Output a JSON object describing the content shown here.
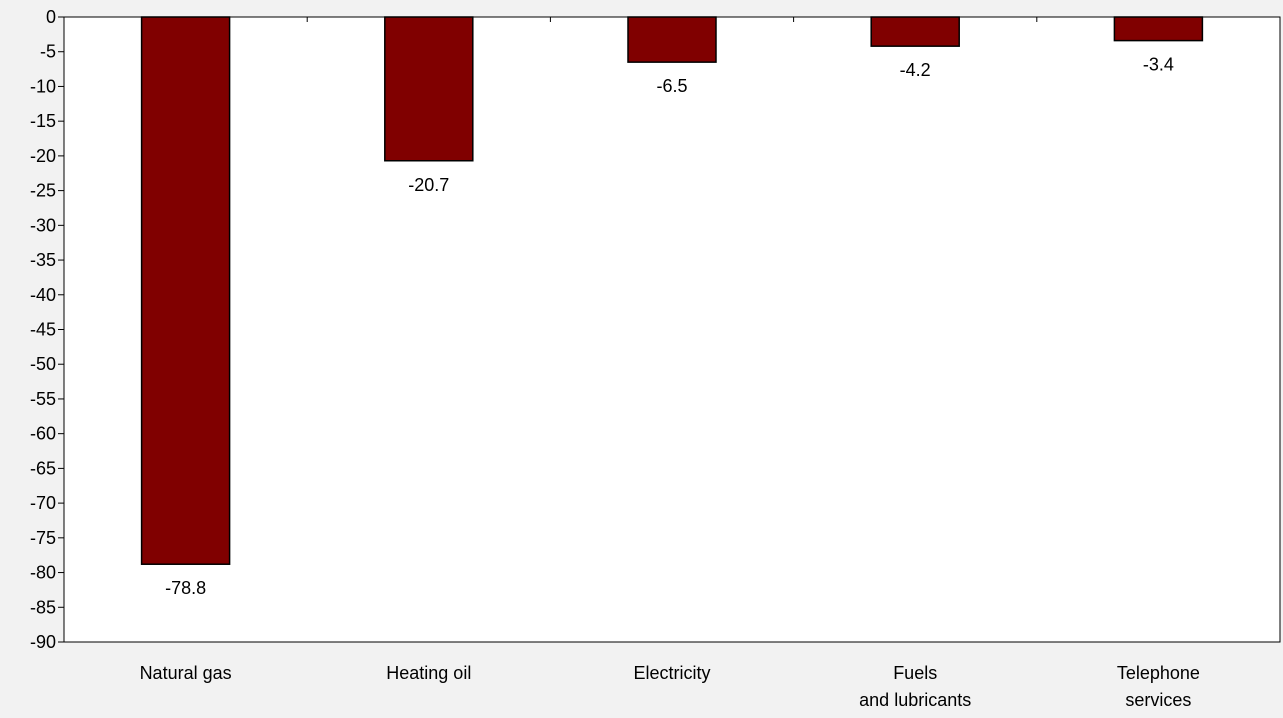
{
  "chart_data": {
    "type": "bar",
    "categories": [
      [
        "Natural gas"
      ],
      [
        "Heating oil"
      ],
      [
        "Electricity"
      ],
      [
        "Fuels",
        "and lubricants"
      ],
      [
        "Telephone",
        "services"
      ]
    ],
    "values": [
      -78.8,
      -20.7,
      -6.5,
      -4.2,
      -3.4
    ],
    "data_labels": [
      "-78.8",
      "-20.7",
      "-6.5",
      "-4.2",
      "-3.4"
    ],
    "ylim": [
      -90,
      0
    ],
    "y_ticks": [
      0,
      -5,
      -10,
      -15,
      -20,
      -25,
      -30,
      -35,
      -40,
      -45,
      -50,
      -55,
      -60,
      -65,
      -70,
      -75,
      -80,
      -85,
      -90
    ],
    "grid": false,
    "legend": "none",
    "bar_color": "#800000",
    "bar_edge_color": "#000000",
    "plot_background": "#ffffff",
    "page_background": "#f2f2f2"
  }
}
